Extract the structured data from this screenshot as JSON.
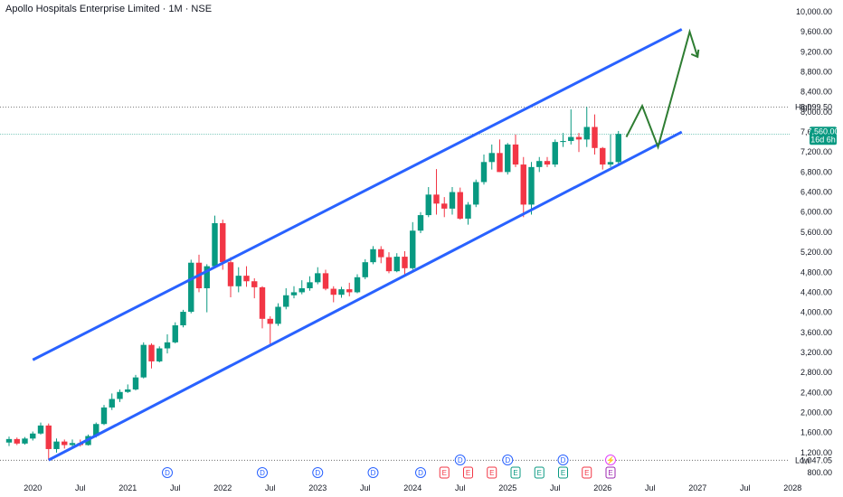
{
  "header": {
    "title": "Apollo Hospitals Enterprise Limited · 1M · NSE"
  },
  "colors": {
    "up": "#089981",
    "down": "#f23645",
    "channel": "#2962ff",
    "projection": "#2e7d32",
    "price_tag": "#089981"
  },
  "chart_data": {
    "type": "candlestick",
    "title": "Apollo Hospitals Enterprise Limited · 1M · NSE",
    "y_ticks": [
      "800.00",
      "1,200.00",
      "1,600.00",
      "2,000.00",
      "2,400.00",
      "2,800.00",
      "3,200.00",
      "3,600.00",
      "4,000.00",
      "4,400.00",
      "4,800.00",
      "5,200.00",
      "5,600.00",
      "6,000.00",
      "6,400.00",
      "6,800.00",
      "7,200.00",
      "7,600.00",
      "8,000.00",
      "8,400.00",
      "8,800.00",
      "9,200.00",
      "9,600.00",
      "10,000.00"
    ],
    "x_ticks": [
      "2020",
      "Jul",
      "2021",
      "Jul",
      "2022",
      "Jul",
      "2023",
      "Jul",
      "2024",
      "Jul",
      "2025",
      "Jul",
      "2026",
      "Jul",
      "2027",
      "Jul",
      "2028"
    ],
    "ylim": [
      700,
      10100
    ],
    "high": {
      "label": "High",
      "value": "8,099.50",
      "v": 8099.5
    },
    "low": {
      "label": "Low",
      "value": "1,047.05",
      "v": 1047.05
    },
    "last_price": {
      "value": "7,560.00",
      "countdown": "16d 6h",
      "v": 7560
    },
    "candles": [
      {
        "t": "2019-10",
        "o": 1400,
        "h": 1520,
        "l": 1330,
        "c": 1470
      },
      {
        "t": "2019-11",
        "o": 1470,
        "h": 1500,
        "l": 1350,
        "c": 1380
      },
      {
        "t": "2019-12",
        "o": 1380,
        "h": 1510,
        "l": 1360,
        "c": 1480
      },
      {
        "t": "2020-01",
        "o": 1480,
        "h": 1620,
        "l": 1440,
        "c": 1580
      },
      {
        "t": "2020-02",
        "o": 1580,
        "h": 1800,
        "l": 1560,
        "c": 1740
      },
      {
        "t": "2020-03",
        "o": 1740,
        "h": 1780,
        "l": 1047.05,
        "c": 1270
      },
      {
        "t": "2020-04",
        "o": 1270,
        "h": 1480,
        "l": 1200,
        "c": 1420
      },
      {
        "t": "2020-05",
        "o": 1420,
        "h": 1460,
        "l": 1280,
        "c": 1350
      },
      {
        "t": "2020-06",
        "o": 1350,
        "h": 1460,
        "l": 1300,
        "c": 1390
      },
      {
        "t": "2020-07",
        "o": 1390,
        "h": 1460,
        "l": 1320,
        "c": 1350
      },
      {
        "t": "2020-08",
        "o": 1350,
        "h": 1560,
        "l": 1340,
        "c": 1530
      },
      {
        "t": "2020-09",
        "o": 1530,
        "h": 1800,
        "l": 1500,
        "c": 1770
      },
      {
        "t": "2020-10",
        "o": 1770,
        "h": 2150,
        "l": 1750,
        "c": 2100
      },
      {
        "t": "2020-11",
        "o": 2100,
        "h": 2380,
        "l": 2050,
        "c": 2270
      },
      {
        "t": "2020-12",
        "o": 2270,
        "h": 2460,
        "l": 2210,
        "c": 2410
      },
      {
        "t": "2021-01",
        "o": 2410,
        "h": 2560,
        "l": 2390,
        "c": 2460
      },
      {
        "t": "2021-02",
        "o": 2460,
        "h": 2750,
        "l": 2440,
        "c": 2700
      },
      {
        "t": "2021-03",
        "o": 2700,
        "h": 3400,
        "l": 2680,
        "c": 3350
      },
      {
        "t": "2021-04",
        "o": 3350,
        "h": 3380,
        "l": 2880,
        "c": 3020
      },
      {
        "t": "2021-05",
        "o": 3020,
        "h": 3320,
        "l": 3000,
        "c": 3280
      },
      {
        "t": "2021-06",
        "o": 3280,
        "h": 3560,
        "l": 3180,
        "c": 3400
      },
      {
        "t": "2021-07",
        "o": 3400,
        "h": 3800,
        "l": 3380,
        "c": 3740
      },
      {
        "t": "2021-08",
        "o": 3740,
        "h": 4050,
        "l": 3700,
        "c": 4010
      },
      {
        "t": "2021-09",
        "o": 4010,
        "h": 5050,
        "l": 3980,
        "c": 4990
      },
      {
        "t": "2021-10",
        "o": 4990,
        "h": 5150,
        "l": 4400,
        "c": 4480
      },
      {
        "t": "2021-11",
        "o": 4480,
        "h": 4960,
        "l": 4000,
        "c": 4920
      },
      {
        "t": "2021-12",
        "o": 4920,
        "h": 5930,
        "l": 4880,
        "c": 5780
      },
      {
        "t": "2022-01",
        "o": 5780,
        "h": 5850,
        "l": 4850,
        "c": 5000
      },
      {
        "t": "2022-02",
        "o": 5000,
        "h": 5100,
        "l": 4300,
        "c": 4520
      },
      {
        "t": "2022-03",
        "o": 4520,
        "h": 4900,
        "l": 4400,
        "c": 4730
      },
      {
        "t": "2022-04",
        "o": 4730,
        "h": 4920,
        "l": 4510,
        "c": 4620
      },
      {
        "t": "2022-05",
        "o": 4620,
        "h": 4680,
        "l": 4280,
        "c": 4500
      },
      {
        "t": "2022-06",
        "o": 4500,
        "h": 4520,
        "l": 3680,
        "c": 3870
      },
      {
        "t": "2022-07",
        "o": 3870,
        "h": 3920,
        "l": 3360,
        "c": 3770
      },
      {
        "t": "2022-08",
        "o": 3770,
        "h": 4180,
        "l": 3730,
        "c": 4110
      },
      {
        "t": "2022-09",
        "o": 4110,
        "h": 4480,
        "l": 4060,
        "c": 4340
      },
      {
        "t": "2022-10",
        "o": 4340,
        "h": 4520,
        "l": 4280,
        "c": 4400
      },
      {
        "t": "2022-11",
        "o": 4400,
        "h": 4640,
        "l": 4360,
        "c": 4480
      },
      {
        "t": "2022-12",
        "o": 4480,
        "h": 4720,
        "l": 4430,
        "c": 4600
      },
      {
        "t": "2023-01",
        "o": 4600,
        "h": 4900,
        "l": 4560,
        "c": 4780
      },
      {
        "t": "2023-02",
        "o": 4780,
        "h": 4850,
        "l": 4440,
        "c": 4470
      },
      {
        "t": "2023-03",
        "o": 4470,
        "h": 4520,
        "l": 4200,
        "c": 4350
      },
      {
        "t": "2023-04",
        "o": 4350,
        "h": 4510,
        "l": 4290,
        "c": 4460
      },
      {
        "t": "2023-05",
        "o": 4460,
        "h": 4590,
        "l": 4320,
        "c": 4400
      },
      {
        "t": "2023-06",
        "o": 4400,
        "h": 4760,
        "l": 4380,
        "c": 4700
      },
      {
        "t": "2023-07",
        "o": 4700,
        "h": 5060,
        "l": 4660,
        "c": 5000
      },
      {
        "t": "2023-08",
        "o": 5000,
        "h": 5320,
        "l": 4960,
        "c": 5260
      },
      {
        "t": "2023-09",
        "o": 5260,
        "h": 5320,
        "l": 4980,
        "c": 5100
      },
      {
        "t": "2023-10",
        "o": 5100,
        "h": 5200,
        "l": 4780,
        "c": 4820
      },
      {
        "t": "2023-11",
        "o": 4820,
        "h": 5180,
        "l": 4800,
        "c": 5110
      },
      {
        "t": "2023-12",
        "o": 5110,
        "h": 5220,
        "l": 4740,
        "c": 4880
      },
      {
        "t": "2024-01",
        "o": 4880,
        "h": 5800,
        "l": 4850,
        "c": 5630
      },
      {
        "t": "2024-02",
        "o": 5630,
        "h": 6000,
        "l": 5580,
        "c": 5940
      },
      {
        "t": "2024-03",
        "o": 5940,
        "h": 6500,
        "l": 5900,
        "c": 6350
      },
      {
        "t": "2024-04",
        "o": 6350,
        "h": 6860,
        "l": 5950,
        "c": 6170
      },
      {
        "t": "2024-05",
        "o": 6170,
        "h": 6300,
        "l": 5900,
        "c": 6070
      },
      {
        "t": "2024-06",
        "o": 6070,
        "h": 6500,
        "l": 5950,
        "c": 6400
      },
      {
        "t": "2024-07",
        "o": 6400,
        "h": 6490,
        "l": 5850,
        "c": 5870
      },
      {
        "t": "2024-08",
        "o": 5870,
        "h": 6200,
        "l": 5750,
        "c": 6150
      },
      {
        "t": "2024-09",
        "o": 6150,
        "h": 6650,
        "l": 6100,
        "c": 6600
      },
      {
        "t": "2024-10",
        "o": 6600,
        "h": 7150,
        "l": 6550,
        "c": 7000
      },
      {
        "t": "2024-11",
        "o": 7000,
        "h": 7350,
        "l": 6850,
        "c": 7180
      },
      {
        "t": "2024-12",
        "o": 7180,
        "h": 7450,
        "l": 6800,
        "c": 6800
      },
      {
        "t": "2025-01",
        "o": 6800,
        "h": 7380,
        "l": 6750,
        "c": 7350
      },
      {
        "t": "2025-02",
        "o": 7350,
        "h": 7550,
        "l": 6900,
        "c": 6950
      },
      {
        "t": "2025-03",
        "o": 6950,
        "h": 7100,
        "l": 5900,
        "c": 6150
      },
      {
        "t": "2025-04",
        "o": 6150,
        "h": 7000,
        "l": 5950,
        "c": 6900
      },
      {
        "t": "2025-05",
        "o": 6900,
        "h": 7100,
        "l": 6800,
        "c": 7020
      },
      {
        "t": "2025-06",
        "o": 7020,
        "h": 7100,
        "l": 6900,
        "c": 6950
      },
      {
        "t": "2025-07",
        "o": 6950,
        "h": 7450,
        "l": 6900,
        "c": 7400
      },
      {
        "t": "2025-08",
        "o": 7400,
        "h": 7580,
        "l": 7300,
        "c": 7420
      },
      {
        "t": "2025-09",
        "o": 7420,
        "h": 8050,
        "l": 7350,
        "c": 7500
      },
      {
        "t": "2025-10",
        "o": 7500,
        "h": 7580,
        "l": 7200,
        "c": 7450
      },
      {
        "t": "2025-11",
        "o": 7450,
        "h": 8099.5,
        "l": 7300,
        "c": 7700
      },
      {
        "t": "2025-12",
        "o": 7700,
        "h": 7950,
        "l": 7150,
        "c": 7280
      },
      {
        "t": "2026-01",
        "o": 7280,
        "h": 7300,
        "l": 6850,
        "c": 6950
      },
      {
        "t": "2026-02",
        "o": 6950,
        "h": 7550,
        "l": 6900,
        "c": 7000
      },
      {
        "t": "2026-03",
        "o": 7000,
        "h": 7620,
        "l": 6950,
        "c": 7560
      }
    ],
    "channel_upper": [
      {
        "t": "2020-01",
        "v": 3050
      },
      {
        "t": "2026-11",
        "v": 9650
      }
    ],
    "channel_lower": [
      {
        "t": "2020-03",
        "v": 1050
      },
      {
        "t": "2026-11",
        "v": 7600
      }
    ],
    "projection_path": [
      {
        "t": "2026-04",
        "v": 7500
      },
      {
        "t": "2026-06",
        "v": 8120
      },
      {
        "t": "2026-08",
        "v": 7300
      },
      {
        "t": "2026-12",
        "v": 9600
      },
      {
        "t": "2027-01",
        "v": 9100
      }
    ],
    "events": [
      {
        "t": "2021-06",
        "label": "D"
      },
      {
        "t": "2022-06",
        "label": "D"
      },
      {
        "t": "2023-01",
        "label": "D"
      },
      {
        "t": "2023-08",
        "label": "D"
      },
      {
        "t": "2024-02",
        "label": "D"
      },
      {
        "t": "2024-05",
        "label": "E"
      },
      {
        "t": "2024-07",
        "label": "D"
      },
      {
        "t": "2024-08",
        "label": "E"
      },
      {
        "t": "2024-11",
        "label": "E"
      },
      {
        "t": "2025-01",
        "label": "D"
      },
      {
        "t": "2025-02",
        "label": "E"
      },
      {
        "t": "2025-05",
        "label": "E"
      },
      {
        "t": "2025-08",
        "label": "E"
      },
      {
        "t": "2025-08",
        "label": "D"
      },
      {
        "t": "2025-11",
        "label": "E"
      },
      {
        "t": "2026-02",
        "label": "⚡"
      },
      {
        "t": "2026-02",
        "label": "E"
      }
    ]
  }
}
